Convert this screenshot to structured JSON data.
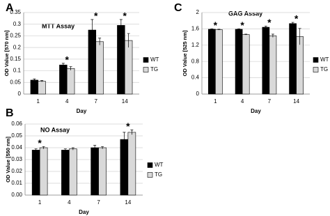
{
  "chart_data": [
    {
      "type": "bar",
      "panel": "A",
      "title": "MTT Assay",
      "y_label": "OD Value [570 nm]",
      "x_label": "Day",
      "categories": [
        "1",
        "4",
        "7",
        "14"
      ],
      "series": [
        {
          "name": "WT",
          "color": "#000000",
          "values": [
            0.06,
            0.125,
            0.275,
            0.295
          ],
          "errors": [
            0.005,
            0.007,
            0.045,
            0.025
          ]
        },
        {
          "name": "TG",
          "color": "#d9d9d9",
          "values": [
            0.055,
            0.11,
            0.225,
            0.23
          ],
          "errors": [
            0.003,
            0.008,
            0.015,
            0.03
          ]
        }
      ],
      "ylim": [
        0,
        0.35
      ],
      "yticks": [
        0,
        0.05,
        0.1,
        0.15,
        0.2,
        0.25,
        0.3,
        0.35
      ],
      "grid": true,
      "annotations": [
        {
          "text": "*",
          "category": "4"
        },
        {
          "text": "*",
          "category": "7"
        },
        {
          "text": "*",
          "category": "14"
        }
      ]
    },
    {
      "type": "bar",
      "panel": "B",
      "title": "NO Assay",
      "y_label": "OD Value [550 nm]",
      "x_label": "Day",
      "categories": [
        "1",
        "4",
        "7",
        "14"
      ],
      "series": [
        {
          "name": "WT",
          "color": "#000000",
          "values": [
            0.038,
            0.038,
            0.04,
            0.047
          ],
          "errors": [
            0.001,
            0.001,
            0.002,
            0.006
          ]
        },
        {
          "name": "TG",
          "color": "#d9d9d9",
          "values": [
            0.04,
            0.039,
            0.04,
            0.053
          ],
          "errors": [
            0.001,
            0.001,
            0.001,
            0.002
          ]
        }
      ],
      "ylim": [
        0,
        0.06
      ],
      "yticks": [
        {
          "value": 0,
          "label": "0.00"
        },
        {
          "value": 0.01,
          "label": "0.01"
        },
        {
          "value": 0.02,
          "label": "0.02"
        },
        {
          "value": 0.03,
          "label": "0.03"
        },
        {
          "value": 0.04,
          "label": "0.04"
        },
        {
          "value": 0.05,
          "label": "0.05"
        },
        {
          "value": 0.06,
          "label": "0.06"
        }
      ],
      "grid": true,
      "annotations": [
        {
          "text": "*",
          "category": "1"
        },
        {
          "text": "*",
          "category": "14"
        }
      ]
    },
    {
      "type": "bar",
      "panel": "C",
      "title": "GAG Assay",
      "y_label": "OD Value [525 nm]",
      "x_label": "Day",
      "categories": [
        "1",
        "4",
        "7",
        "14"
      ],
      "series": [
        {
          "name": "WT",
          "color": "#000000",
          "values": [
            1.59,
            1.59,
            1.64,
            1.73
          ],
          "errors": [
            0.01,
            0.01,
            0.03,
            0.03
          ]
        },
        {
          "name": "TG",
          "color": "#d9d9d9",
          "values": [
            1.58,
            1.46,
            1.43,
            1.41
          ],
          "errors": [
            0.01,
            0.01,
            0.04,
            0.2
          ]
        }
      ],
      "ylim": [
        0,
        2
      ],
      "yticks": [
        0,
        0.4,
        0.8,
        1.2,
        1.6,
        2
      ],
      "grid": true,
      "annotations": [
        {
          "text": "*",
          "category": "1"
        },
        {
          "text": "*",
          "category": "4"
        },
        {
          "text": "*",
          "category": "7"
        },
        {
          "text": "*",
          "category": "14"
        }
      ]
    }
  ]
}
